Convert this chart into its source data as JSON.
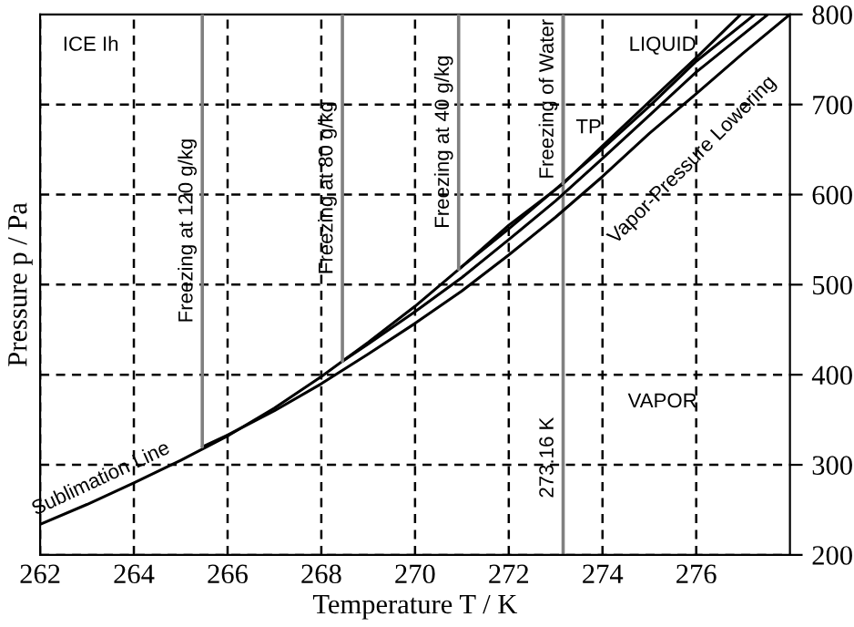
{
  "chart_data": {
    "type": "line",
    "xlabel": "Temperature T / K",
    "ylabel": "Pressure p / Pa",
    "xlim": [
      262,
      278
    ],
    "xticks": [
      262,
      264,
      266,
      268,
      270,
      272,
      274,
      276
    ],
    "ylim": [
      200,
      800
    ],
    "yticks": [
      200,
      300,
      400,
      500,
      600,
      700,
      800
    ],
    "grid": true,
    "line_style": "solid",
    "marker": "none",
    "series": [
      {
        "name": "Sublimation Line",
        "color": "#000000",
        "x": [
          262,
          263,
          264,
          265,
          266,
          267,
          268,
          269,
          270,
          271,
          272,
          273.16,
          274,
          275,
          276,
          276.95
        ],
        "values": [
          234,
          256,
          280,
          305,
          332,
          363,
          398,
          436,
          476,
          520,
          566,
          612,
          654,
          703,
          752,
          800
        ]
      },
      {
        "color": "#000000",
        "x": [
          270.93,
          272,
          273,
          274,
          275,
          276,
          277.25
        ],
        "values": [
          517,
          562,
          606,
          651,
          698,
          748,
          800
        ]
      },
      {
        "color": "#000000",
        "x": [
          268.45,
          269,
          270,
          271,
          272,
          273,
          274,
          275,
          276,
          277.53
        ],
        "values": [
          415,
          434,
          470,
          508,
          550,
          593,
          640,
          688,
          736,
          800
        ]
      },
      {
        "color": "#000000",
        "x": [
          265.46,
          266,
          267,
          268,
          269,
          270,
          271,
          272,
          273,
          274,
          275,
          276,
          277,
          278
        ],
        "values": [
          320,
          333,
          360,
          390,
          423,
          457,
          493,
          533,
          575,
          620,
          668,
          712,
          757,
          800
        ]
      },
      {
        "name": "Freezing at 120 g/kg",
        "color": "#808080",
        "x": [
          265.46,
          265.46
        ],
        "values": [
          320,
          800
        ]
      },
      {
        "name": "Freezing at 80 g/kg",
        "color": "#808080",
        "x": [
          268.45,
          268.45
        ],
        "values": [
          415,
          800
        ]
      },
      {
        "name": "Freezing at 40 g/kg",
        "color": "#808080",
        "x": [
          270.93,
          270.93
        ],
        "values": [
          517,
          800
        ]
      },
      {
        "name": "Freezing of Water",
        "color": "#808080",
        "x": [
          273.16,
          273.16
        ],
        "values": [
          612,
          800
        ]
      }
    ],
    "ref_lines": [
      {
        "axis": "x",
        "value": 273.16,
        "label": "273.16 K",
        "color": "#808080"
      }
    ],
    "annotations": [
      "ICE Ih",
      "LIQUID",
      "VAPOR",
      {
        "text": "TP",
        "x": 273.16,
        "y": 612
      },
      "Vapor-Pressure Lowering"
    ]
  }
}
